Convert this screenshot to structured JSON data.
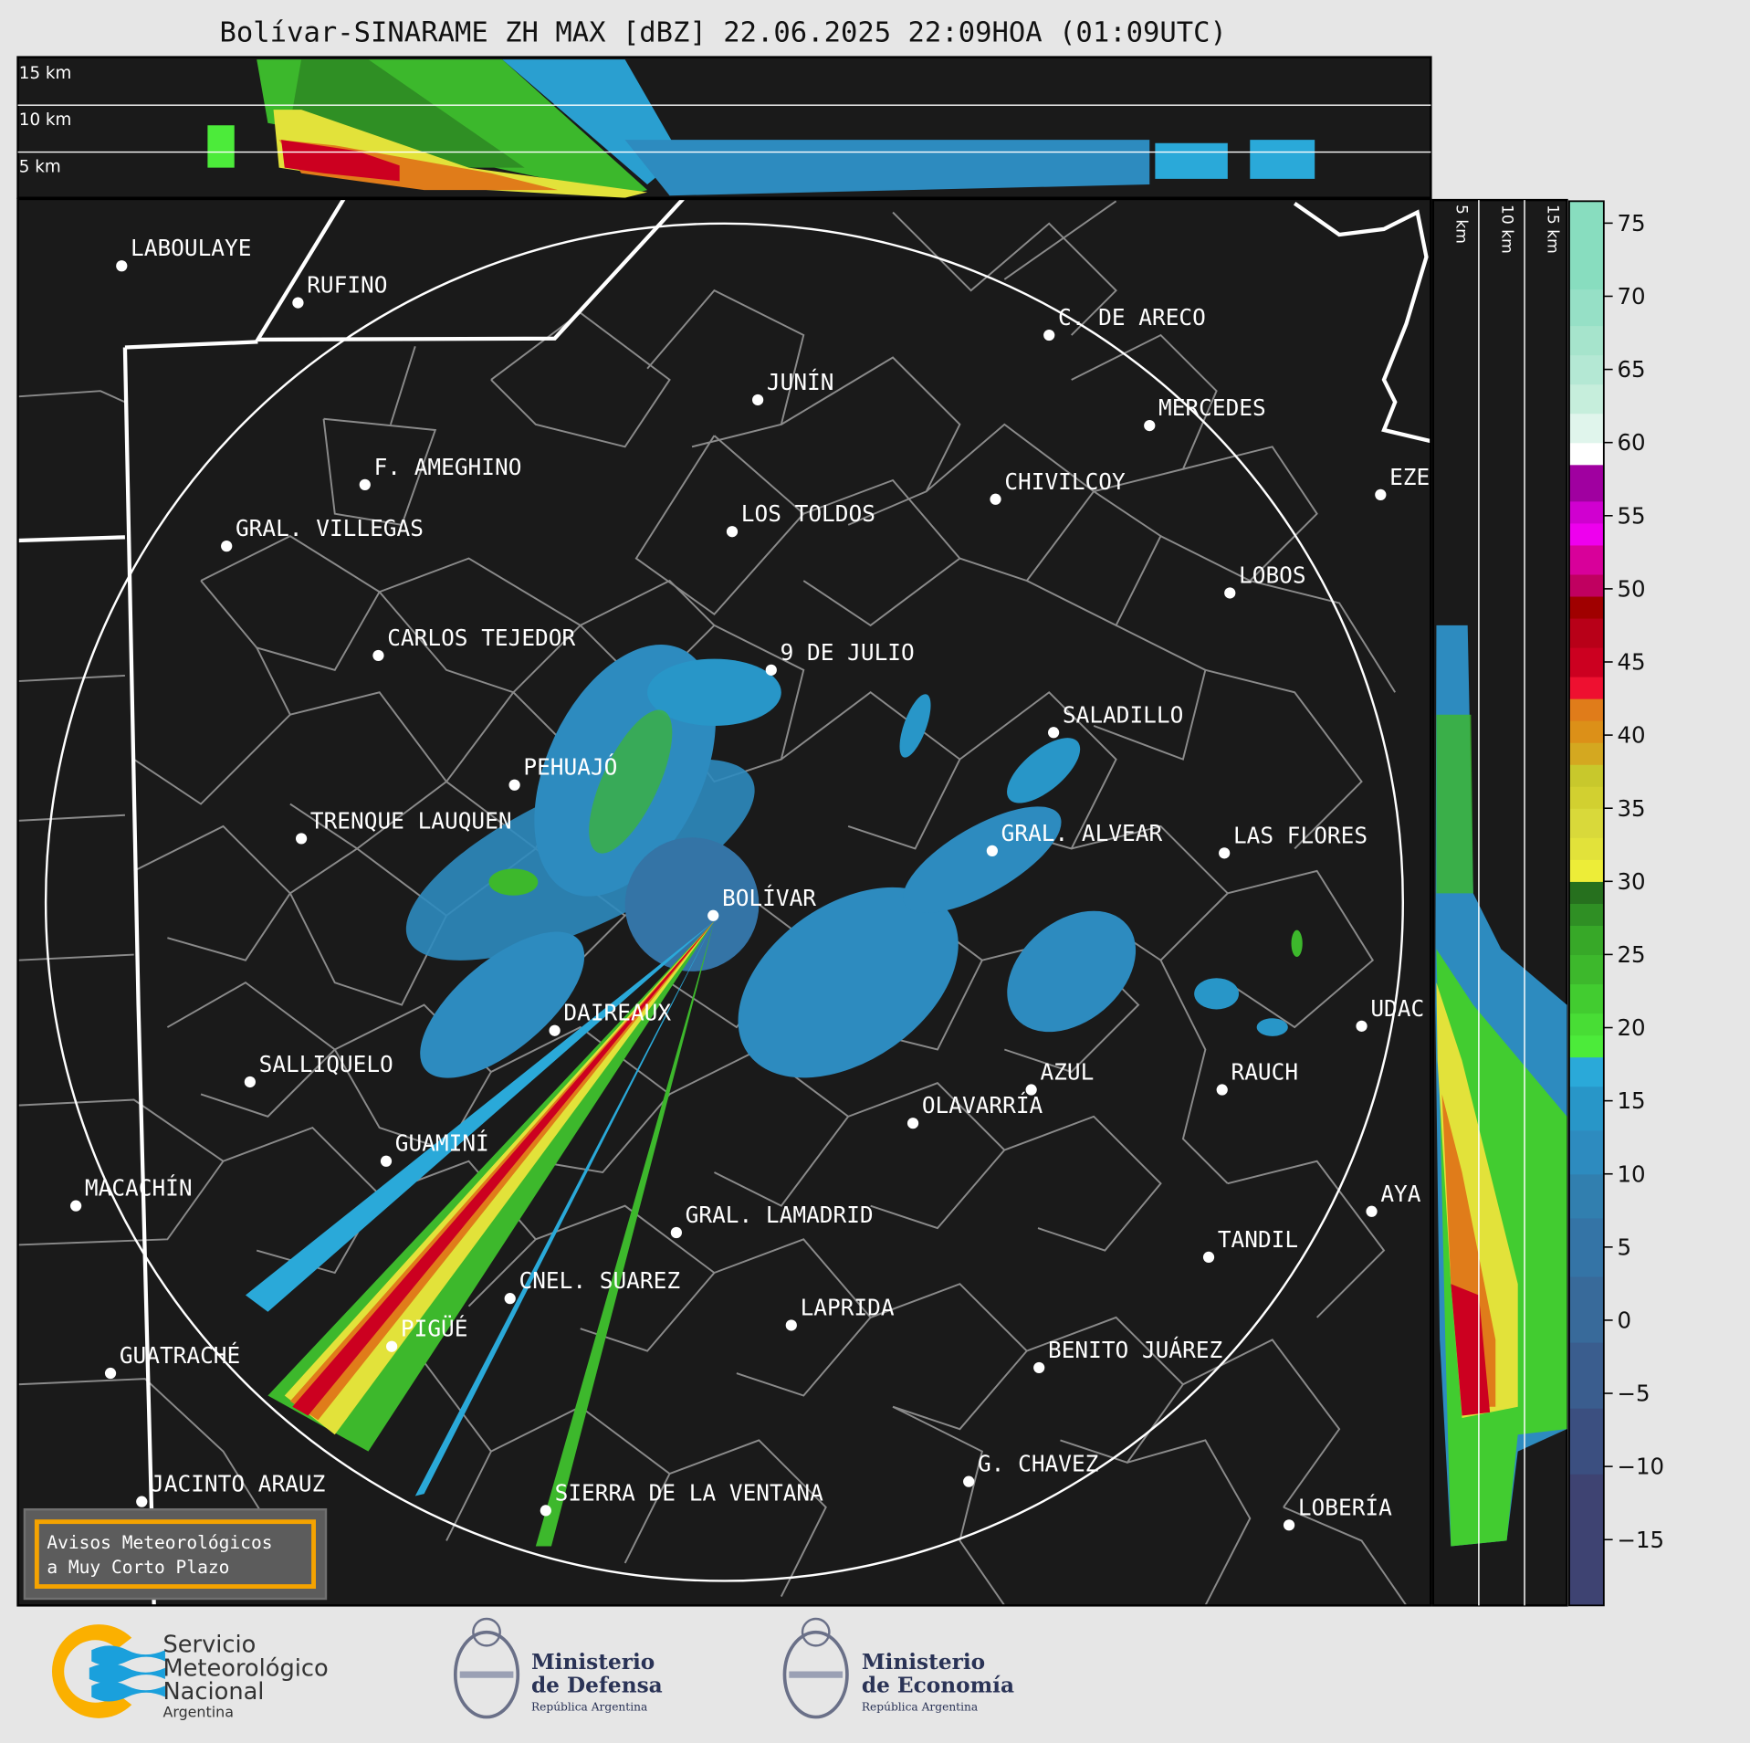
{
  "title": "Bolívar-SINARAME ZH MAX [dBZ] 22.06.2025 22:09HOA (01:09UTC)",
  "top_section": {
    "labels": [
      "15 km",
      "10 km",
      "5 km"
    ]
  },
  "side_section": {
    "labels": [
      "5 km",
      "10 km",
      "15 km"
    ]
  },
  "colorbar": {
    "unit": "dBZ",
    "range": [
      -19.5,
      76.5
    ],
    "ticks": [
      "75",
      "70",
      "65",
      "60",
      "55",
      "50",
      "45",
      "40",
      "35",
      "30",
      "25",
      "20",
      "15",
      "10",
      "5",
      "0",
      "−5",
      "−10",
      "−15"
    ],
    "tick_values": [
      75,
      70,
      65,
      60,
      55,
      50,
      45,
      40,
      35,
      30,
      25,
      20,
      15,
      10,
      5,
      0,
      -5,
      -10,
      -15
    ],
    "bands": [
      [
        -19.5,
        "#3e4372"
      ],
      [
        -10.5,
        "#3b4f80"
      ],
      [
        -6,
        "#3a5d8e"
      ],
      [
        -1.5,
        "#386a9a"
      ],
      [
        3,
        "#3474a6"
      ],
      [
        7,
        "#317faf"
      ],
      [
        10,
        "#2d8bbf"
      ],
      [
        13,
        "#2896c8"
      ],
      [
        16,
        "#2aa9d9"
      ],
      [
        18,
        "#4ceb3a"
      ],
      [
        19.5,
        "#48dd35"
      ],
      [
        21,
        "#42cc30"
      ],
      [
        23,
        "#3db82c"
      ],
      [
        25,
        "#37a828"
      ],
      [
        27,
        "#2f8f24"
      ],
      [
        28.5,
        "#26701e"
      ],
      [
        30,
        "#eded38"
      ],
      [
        31.5,
        "#e2e23a"
      ],
      [
        33,
        "#d9d93a"
      ],
      [
        35,
        "#d2d030"
      ],
      [
        36.5,
        "#c8c82c"
      ],
      [
        38,
        "#d4a820"
      ],
      [
        39.5,
        "#dc9018"
      ],
      [
        41,
        "#e07c1a"
      ],
      [
        42.5,
        "#ee1030"
      ],
      [
        44,
        "#cc0020"
      ],
      [
        46,
        "#b80018"
      ],
      [
        48,
        "#a00000"
      ],
      [
        49.5,
        "#c00060"
      ],
      [
        51,
        "#d8009a"
      ],
      [
        53,
        "#ee00ee"
      ],
      [
        54.5,
        "#d000d0"
      ],
      [
        56,
        "#a000a0"
      ],
      [
        58.5,
        "#ffffff"
      ],
      [
        60,
        "#e0f5ec"
      ],
      [
        62,
        "#c6eedc"
      ],
      [
        64,
        "#b4e8d4"
      ],
      [
        66,
        "#a6e4cc"
      ],
      [
        68,
        "#96e0c6"
      ],
      [
        70.5,
        "#88ddbf"
      ]
    ]
  },
  "radar_site": "BOLÍVAR",
  "cities": [
    "LABOULAYE",
    "RUFINO",
    "C. DE ARECO",
    "JUNÍN",
    "MERCEDES",
    "F. AMEGHINO",
    "CHIVILCOY",
    "EZE",
    "GRAL. VILLEGAS",
    "LOS TOLDOS",
    "LOBOS",
    "CARLOS TEJEDOR",
    "9 DE JULIO",
    "SALADILLO",
    "PEHUAJÓ",
    "TRENQUE LAUQUEN",
    "GRAL. ALVEAR",
    "LAS FLORES",
    "BOLÍVAR",
    "DAIREAUX",
    "UDAC",
    "SALLIQUELO",
    "AZUL",
    "RAUCH",
    "OLAVARRÍA",
    "GUAMINÍ",
    "MACACHÍN",
    "AYA",
    "GRAL. LAMADRID",
    "TANDIL",
    "CNEL. SUAREZ",
    "LAPRIDA",
    "PIGÜÉ",
    "GUATRACHÉ",
    "BENITO JUÁREZ",
    "G. CHAVEZ",
    "JACINTO ARAUZ",
    "SIERRA DE LA VENTANA",
    "LOBERÍA"
  ],
  "warning_box": {
    "line1": "Avisos Meteorológicos",
    "line2": "a Muy Corto Plazo",
    "border_color": "#f5a300"
  },
  "logos": {
    "smn": {
      "line1": "Servicio",
      "line2": "Meteorológico",
      "line3": "Nacional",
      "line4": "Argentina"
    },
    "defensa": {
      "line1": "Ministerio",
      "line2": "de Defensa",
      "line3": "República Argentina"
    },
    "economia": {
      "line1": "Ministerio",
      "line2": "de Economía",
      "line3": "República Argentina"
    }
  },
  "colors": {
    "background": "#e6e6e6",
    "map_bg": "#1a1a1a",
    "smn_orange": "#fbb000",
    "smn_blue": "#1aa0dc",
    "ministry_navy": "#2a3356"
  }
}
